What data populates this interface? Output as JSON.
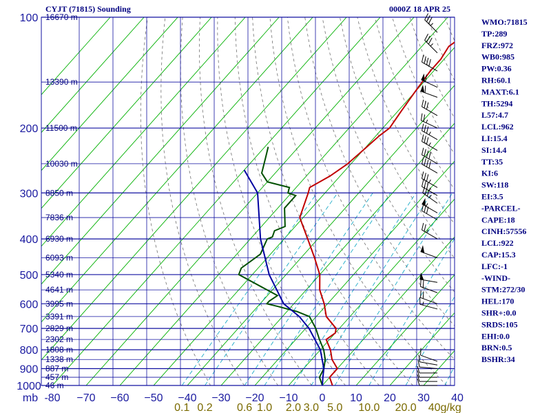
{
  "header": {
    "station": "CYJT (71815) Sounding",
    "time": "0000Z 18 APR 25"
  },
  "stats": [
    "WMO:71815",
    "TP:289",
    "FRZ:972",
    "WB0:985",
    "PW:0.36",
    "RH:60.1",
    "MAXT:6.1",
    "TH:5294",
    "L57:4.7",
    "LCL:962",
    "LI:15.4",
    "SI:14.4",
    "TT:35",
    "KI:6",
    "SW:118",
    "EI:3.5",
    "-PARCEL-",
    "CAPE:18",
    "CINH:57556",
    "LCL:922",
    "CAP:15.3",
    "LFC:-1",
    "-WIND-",
    "STM:272/30",
    "HEL:170",
    "SHR+:0.0",
    "SRDS:105",
    "EHI:0.0",
    "BRN:0.5",
    "BSHR:34"
  ],
  "colors": {
    "grid": "#1010a0",
    "isotherm": "#00b000",
    "dry_adiabat": "#707070",
    "mixing_ratio": "#00a0c0",
    "temperature": "#c00000",
    "dewpoint": "#005000",
    "parcel": "#0000a0"
  },
  "chart_data": {
    "type": "skew-t",
    "x_label_corner": "mb",
    "pressure_levels": [
      100,
      200,
      300,
      400,
      500,
      600,
      700,
      800,
      900,
      1000
    ],
    "pressure_labels": [
      "100",
      "200",
      "300",
      "400",
      "500",
      "600",
      "700",
      "800",
      "900",
      "1000"
    ],
    "temperature_ticks": [
      -80,
      -70,
      -60,
      -50,
      -40,
      -30,
      -20,
      -10,
      0,
      10,
      20,
      30,
      40
    ],
    "temperature_tick_labels": [
      "-80",
      "−70",
      "−60",
      "−50",
      "−40",
      "−30",
      "−20",
      "−10",
      "0",
      "10",
      "20",
      "30",
      "40"
    ],
    "mixing_ratio_ticks": [
      "0.1",
      "0.2",
      "0.6",
      "1.0",
      "2.0",
      "3.0",
      "5.0",
      "10.0",
      "20.0",
      "40g/kg"
    ],
    "mixing_ratio_values": [
      0.1,
      0.2,
      0.6,
      1.0,
      2.0,
      3.0,
      5.0,
      10.0,
      20.0,
      40.0
    ],
    "height_labels": [
      {
        "p": 100,
        "text": "16670 m"
      },
      {
        "p": 150,
        "text": "13390 m"
      },
      {
        "p": 200,
        "text": "11500 m"
      },
      {
        "p": 250,
        "text": "10030 m"
      },
      {
        "p": 300,
        "text": "8850 m"
      },
      {
        "p": 350,
        "text": "7836 m"
      },
      {
        "p": 400,
        "text": "6930 m"
      },
      {
        "p": 450,
        "text": "6093 m"
      },
      {
        "p": 500,
        "text": "5340 m"
      },
      {
        "p": 550,
        "text": "4641 m"
      },
      {
        "p": 600,
        "text": "3995 m"
      },
      {
        "p": 650,
        "text": "3391 m"
      },
      {
        "p": 700,
        "text": "2829 m"
      },
      {
        "p": 750,
        "text": "2302 m"
      },
      {
        "p": 800,
        "text": "1808 m"
      },
      {
        "p": 850,
        "text": "1338 m"
      },
      {
        "p": 900,
        "text": "887 m"
      },
      {
        "p": 950,
        "text": "457 m"
      },
      {
        "p": 1000,
        "text": "46 m"
      }
    ],
    "series": [
      {
        "name": "",
        "role": "temperature",
        "points": [
          [
            100,
            -48
          ],
          [
            105,
            -44
          ],
          [
            110,
            -48
          ],
          [
            115,
            -51
          ],
          [
            120,
            -52
          ],
          [
            130,
            -51
          ],
          [
            140,
            -51
          ],
          [
            160,
            -50
          ],
          [
            180,
            -49
          ],
          [
            200,
            -48
          ],
          [
            210,
            -49
          ],
          [
            230,
            -50
          ],
          [
            250,
            -51
          ],
          [
            270,
            -53
          ],
          [
            290,
            -56
          ],
          [
            300,
            -55
          ],
          [
            350,
            -51
          ],
          [
            400,
            -43
          ],
          [
            450,
            -36
          ],
          [
            500,
            -30
          ],
          [
            550,
            -26
          ],
          [
            600,
            -21
          ],
          [
            650,
            -17
          ],
          [
            700,
            -11
          ],
          [
            720,
            -10
          ],
          [
            750,
            -11
          ],
          [
            800,
            -7
          ],
          [
            850,
            -4
          ],
          [
            900,
            0
          ],
          [
            950,
            0
          ],
          [
            1000,
            3
          ]
        ]
      },
      {
        "name": "",
        "role": "dewpoint",
        "points": [
          [
            225,
            -79
          ],
          [
            240,
            -77
          ],
          [
            265,
            -74
          ],
          [
            280,
            -70
          ],
          [
            290,
            -62
          ],
          [
            300,
            -61
          ],
          [
            305,
            -58
          ],
          [
            330,
            -58
          ],
          [
            370,
            -53
          ],
          [
            380,
            -55
          ],
          [
            395,
            -54
          ],
          [
            400,
            -55
          ],
          [
            440,
            -53
          ],
          [
            480,
            -55
          ],
          [
            500,
            -54
          ],
          [
            570,
            -37
          ],
          [
            590,
            -38
          ],
          [
            600,
            -38
          ],
          [
            610,
            -34
          ],
          [
            630,
            -27
          ],
          [
            650,
            -22
          ],
          [
            700,
            -17
          ],
          [
            750,
            -13
          ],
          [
            800,
            -9
          ],
          [
            850,
            -6
          ],
          [
            900,
            -4
          ],
          [
            950,
            -3
          ],
          [
            1000,
            0
          ]
        ]
      },
      {
        "name": "",
        "role": "parcel",
        "points": [
          [
            260,
            -80
          ],
          [
            300,
            -70
          ],
          [
            400,
            -57
          ],
          [
            500,
            -45
          ],
          [
            600,
            -33
          ],
          [
            650,
            -25
          ],
          [
            700,
            -19
          ],
          [
            800,
            -10
          ],
          [
            900,
            -4
          ],
          [
            950,
            -2
          ],
          [
            1000,
            0
          ]
        ]
      }
    ]
  },
  "winds": [
    {
      "p": 110,
      "dir": 315,
      "spd": 35
    },
    {
      "p": 125,
      "dir": 315,
      "spd": 35
    },
    {
      "p": 140,
      "dir": 300,
      "spd": 40
    },
    {
      "p": 155,
      "dir": 295,
      "spd": 60
    },
    {
      "p": 165,
      "dir": 290,
      "spd": 60
    },
    {
      "p": 185,
      "dir": 300,
      "spd": 30
    },
    {
      "p": 200,
      "dir": 295,
      "spd": 25
    },
    {
      "p": 215,
      "dir": 300,
      "spd": 35
    },
    {
      "p": 230,
      "dir": 300,
      "spd": 35
    },
    {
      "p": 250,
      "dir": 300,
      "spd": 40
    },
    {
      "p": 265,
      "dir": 300,
      "spd": 40
    },
    {
      "p": 290,
      "dir": 300,
      "spd": 35
    },
    {
      "p": 305,
      "dir": 300,
      "spd": 35
    },
    {
      "p": 320,
      "dir": 305,
      "spd": 35
    },
    {
      "p": 340,
      "dir": 300,
      "spd": 55
    },
    {
      "p": 355,
      "dir": 300,
      "spd": 30
    },
    {
      "p": 400,
      "dir": 300,
      "spd": 25
    },
    {
      "p": 450,
      "dir": 290,
      "spd": 50
    },
    {
      "p": 525,
      "dir": 280,
      "spd": 50
    },
    {
      "p": 560,
      "dir": 290,
      "spd": 20
    },
    {
      "p": 600,
      "dir": 290,
      "spd": 20
    },
    {
      "p": 620,
      "dir": 285,
      "spd": 15
    },
    {
      "p": 860,
      "dir": 290,
      "spd": 10
    },
    {
      "p": 880,
      "dir": 280,
      "spd": 10
    },
    {
      "p": 900,
      "dir": 275,
      "spd": 10
    },
    {
      "p": 925,
      "dir": 270,
      "spd": 10
    },
    {
      "p": 950,
      "dir": 270,
      "spd": 10
    },
    {
      "p": 975,
      "dir": 270,
      "spd": 10
    },
    {
      "p": 1000,
      "dir": 270,
      "spd": 10
    }
  ]
}
